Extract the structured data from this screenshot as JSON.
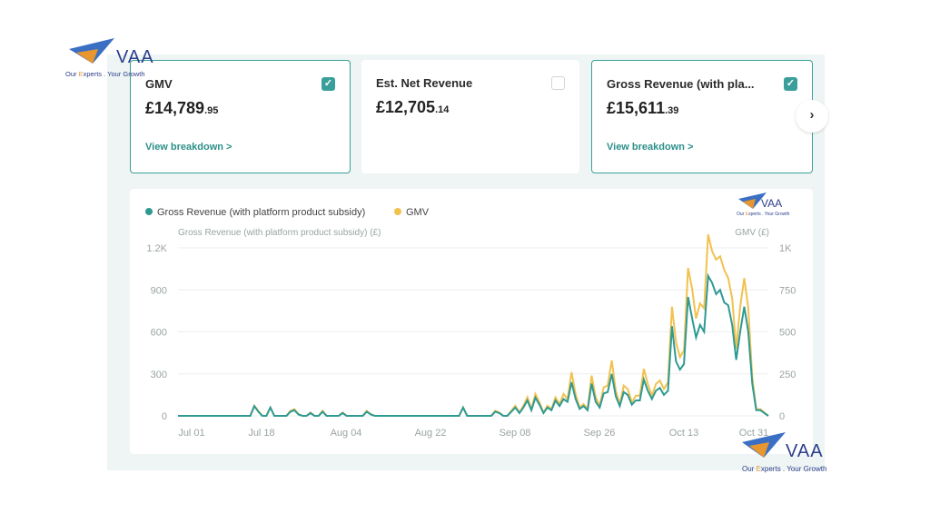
{
  "cards": [
    {
      "title": "GMV",
      "currency": "£",
      "whole": "14,789",
      "cents": ".95",
      "link": "View breakdown >",
      "checked": true
    },
    {
      "title": "Est. Net Revenue",
      "currency": "£",
      "whole": "12,705",
      "cents": ".14",
      "link": "",
      "checked": false
    },
    {
      "title": "Gross Revenue (with pla...",
      "currency": "£",
      "whole": "15,611",
      "cents": ".39",
      "link": "View breakdown >",
      "checked": true
    }
  ],
  "next_icon": "chevron-right-icon",
  "logo": {
    "name": "VAA",
    "tagline_pre": "Our ",
    "tagline_hl": "E",
    "tagline_post": "xperts . Your Growth"
  },
  "colors": {
    "teal": "#2f9a93",
    "yellow": "#f2c14e",
    "accent": "#3a9f9a",
    "link": "#2c8f8a"
  },
  "chart_data": {
    "type": "line",
    "legend": [
      "Gross Revenue (with platform product subsidy)",
      "GMV"
    ],
    "legend_placement": "top-left",
    "ylabel_left": "Gross Revenue (with platform product subsidy) (£)",
    "ylabel_right": "GMV (£)",
    "yticks_left": [
      "0",
      "300",
      "600",
      "900",
      "1.2K"
    ],
    "yticks_right": [
      "0",
      "250",
      "500",
      "750",
      "1K"
    ],
    "ylim_left": [
      0,
      1200
    ],
    "ylim_right": [
      0,
      1000
    ],
    "xticks": [
      "Jul 01",
      "Jul 18",
      "Aug 04",
      "Aug 22",
      "Sep 08",
      "Sep 26",
      "Oct 13",
      "Oct 31"
    ],
    "grid": true,
    "series": [
      {
        "name": "Gross Revenue (with platform product subsidy)",
        "axis": "left",
        "color": "#2f9a93",
        "values": [
          0,
          0,
          0,
          0,
          0,
          0,
          0,
          0,
          0,
          0,
          0,
          0,
          0,
          0,
          0,
          0,
          0,
          0,
          0,
          70,
          30,
          0,
          0,
          60,
          0,
          0,
          0,
          0,
          30,
          40,
          10,
          0,
          0,
          20,
          0,
          0,
          30,
          0,
          0,
          0,
          0,
          20,
          0,
          0,
          0,
          0,
          0,
          30,
          10,
          0,
          0,
          0,
          0,
          0,
          0,
          0,
          0,
          0,
          0,
          0,
          0,
          0,
          0,
          0,
          0,
          0,
          0,
          0,
          0,
          0,
          0,
          60,
          0,
          0,
          0,
          0,
          0,
          0,
          0,
          30,
          20,
          0,
          0,
          30,
          60,
          20,
          60,
          110,
          40,
          130,
          80,
          20,
          60,
          40,
          110,
          70,
          120,
          100,
          240,
          120,
          50,
          70,
          40,
          230,
          100,
          60,
          160,
          170,
          300,
          140,
          70,
          170,
          150,
          80,
          110,
          110,
          260,
          180,
          120,
          180,
          200,
          150,
          180,
          640,
          390,
          330,
          370,
          850,
          700,
          560,
          650,
          600,
          1000,
          950,
          870,
          900,
          810,
          790,
          650,
          400,
          600,
          780,
          600,
          230,
          40,
          40,
          20,
          0
        ]
      },
      {
        "name": "GMV",
        "axis": "right",
        "color": "#f2c14e",
        "values": [
          0,
          0,
          0,
          0,
          0,
          0,
          0,
          0,
          0,
          0,
          0,
          0,
          0,
          0,
          0,
          0,
          0,
          0,
          0,
          60,
          30,
          0,
          0,
          50,
          0,
          0,
          0,
          0,
          30,
          40,
          10,
          0,
          0,
          20,
          0,
          0,
          30,
          0,
          0,
          0,
          0,
          20,
          0,
          0,
          0,
          0,
          0,
          30,
          10,
          0,
          0,
          0,
          0,
          0,
          0,
          0,
          0,
          0,
          0,
          0,
          0,
          0,
          0,
          0,
          0,
          0,
          0,
          0,
          0,
          0,
          0,
          50,
          0,
          0,
          0,
          0,
          0,
          0,
          0,
          30,
          20,
          0,
          0,
          30,
          60,
          20,
          60,
          110,
          40,
          130,
          80,
          20,
          60,
          40,
          110,
          70,
          130,
          100,
          260,
          130,
          50,
          70,
          40,
          240,
          110,
          60,
          170,
          180,
          330,
          150,
          70,
          180,
          160,
          80,
          120,
          120,
          280,
          190,
          120,
          190,
          210,
          160,
          200,
          650,
          440,
          350,
          390,
          880,
          760,
          580,
          670,
          640,
          1080,
          980,
          930,
          950,
          870,
          820,
          700,
          400,
          650,
          820,
          640,
          230,
          40,
          40,
          20,
          0
        ]
      }
    ]
  }
}
